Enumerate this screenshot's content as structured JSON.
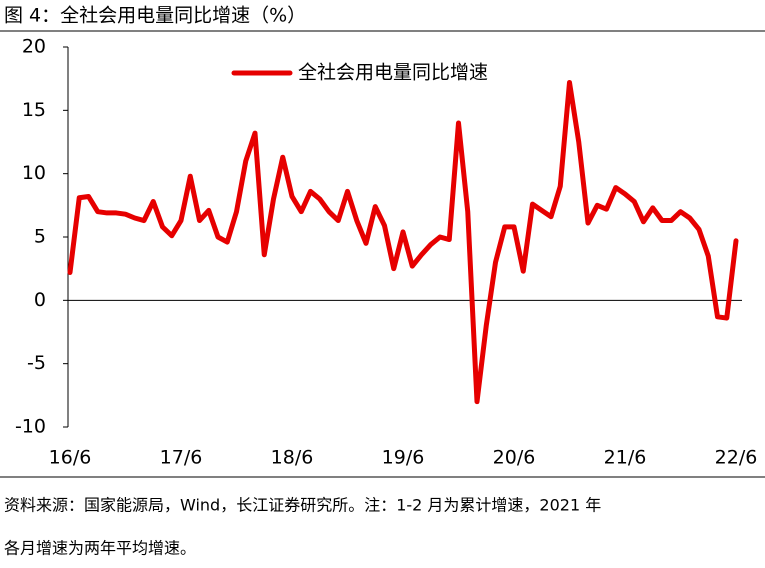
{
  "chart_data": {
    "type": "line",
    "title": "图 4：全社会用电量同比增速（%）",
    "categories": [
      "16/6",
      null,
      null,
      null,
      null,
      null,
      null,
      null,
      null,
      null,
      null,
      null,
      "17/6",
      null,
      null,
      null,
      null,
      null,
      null,
      null,
      null,
      null,
      null,
      null,
      "18/6",
      null,
      null,
      null,
      null,
      null,
      null,
      null,
      null,
      null,
      null,
      null,
      "19/6",
      null,
      null,
      null,
      null,
      null,
      null,
      null,
      null,
      null,
      null,
      null,
      "20/6",
      null,
      null,
      null,
      null,
      null,
      null,
      null,
      null,
      null,
      null,
      null,
      "21/6",
      null,
      null,
      null,
      null,
      null,
      null,
      null,
      null,
      null,
      null,
      null,
      "22/6"
    ],
    "series": [
      {
        "name": "全社会用电量同比增速",
        "color": "#e60000",
        "values": [
          2.2,
          8.1,
          8.2,
          7.0,
          6.9,
          6.9,
          6.8,
          6.5,
          6.3,
          7.8,
          5.8,
          5.1,
          6.3,
          9.8,
          6.3,
          7.1,
          5.0,
          4.6,
          7.0,
          11.0,
          13.2,
          3.6,
          8.0,
          11.3,
          8.2,
          7.0,
          8.6,
          8.0,
          7.0,
          6.3,
          8.6,
          6.3,
          4.5,
          7.4,
          5.9,
          2.5,
          5.4,
          2.7,
          3.6,
          4.4,
          5.0,
          4.8,
          14.0,
          7.0,
          -8.0,
          -2.0,
          3.0,
          5.8,
          5.8,
          2.3,
          7.6,
          7.1,
          6.6,
          9.0,
          17.2,
          12.5,
          6.1,
          7.5,
          7.2,
          8.9,
          8.4,
          7.8,
          6.2,
          7.3,
          6.3,
          6.3,
          7.0,
          6.5,
          5.6,
          3.5,
          -1.3,
          -1.4,
          4.7
        ]
      }
    ],
    "ylim": [
      -10,
      20
    ],
    "yticks": [
      -10,
      -5,
      0,
      5,
      10,
      15,
      20
    ],
    "legend": "top",
    "note": [
      "资料来源：国家能源局，Wind，长江证券研究所。注：1-2 月为累计增速，2021 年",
      "各月增速为两年平均增速。"
    ]
  }
}
